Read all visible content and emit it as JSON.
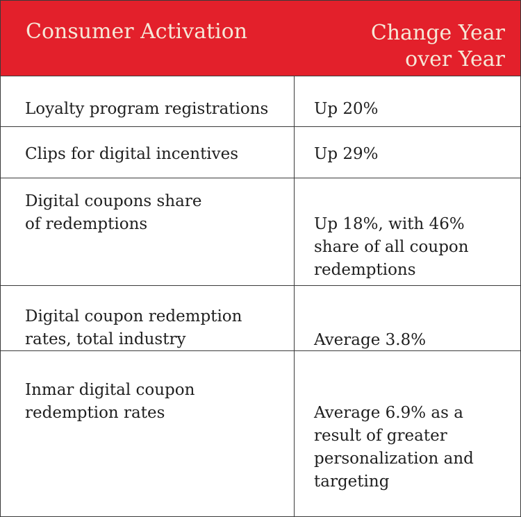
{
  "header": {
    "col1": "Consumer Activation",
    "col2": "Change Year\nover Year"
  },
  "rows": [
    {
      "metric": "Loyalty program registrations",
      "change": "Up 20%"
    },
    {
      "metric": "Clips for digital incentives",
      "change": "Up 29%"
    },
    {
      "metric": "Digital coupons share\nof redemptions",
      "change": "Up 18%, with 46%\n  share  of all coupon\n  redemptions"
    },
    {
      "metric": "Digital coupon redemption\n   rates, total industry",
      "change": "Average 3.8%"
    },
    {
      "metric": "Inmar digital coupon\n  redemption rates",
      "change": "Average 6.9% as a\nresult of greater\npersonalization and\ntargeting"
    }
  ],
  "colors": {
    "header_bg": "#e3202b",
    "header_text": "#f6e7d7",
    "border": "#3a3a3a"
  }
}
